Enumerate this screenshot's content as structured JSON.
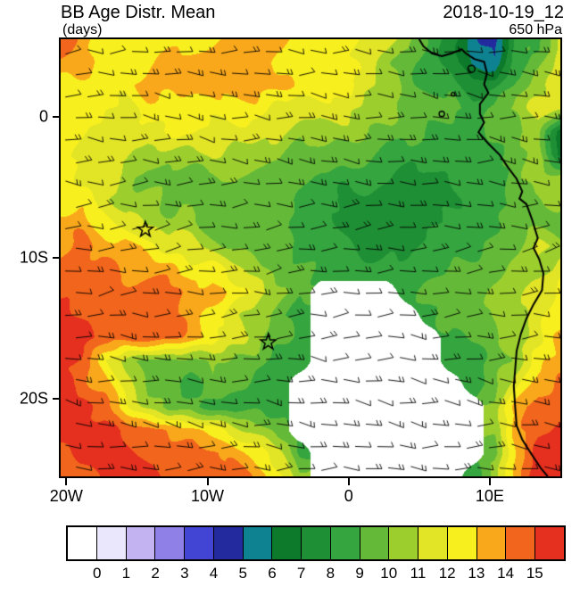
{
  "header": {
    "title": "BB Age Distr. Mean",
    "datetime": "2018-10-19_12",
    "units": "(days)",
    "level": "650 hPa"
  },
  "axes": {
    "x": {
      "ticks": [
        {
          "label": "20W",
          "lon": -20
        },
        {
          "label": "10W",
          "lon": -10
        },
        {
          "label": "0",
          "lon": 0
        },
        {
          "label": "10E",
          "lon": 10
        }
      ]
    },
    "y": {
      "ticks": [
        {
          "label": "0",
          "lat": 0
        },
        {
          "label": "10S",
          "lat": -10
        },
        {
          "label": "20S",
          "lat": -20
        }
      ]
    }
  },
  "colorbar": {
    "labels": [
      "0",
      "1",
      "2",
      "3",
      "4",
      "5",
      "6",
      "7",
      "8",
      "9",
      "10",
      "11",
      "12",
      "13",
      "14",
      "15"
    ]
  },
  "chart_data": {
    "type": "heatmap",
    "title": "BB Age Distr. Mean",
    "subtitle_units": "days",
    "level": "650 hPa",
    "valid_time": "2018-10-19_12",
    "lon_range": [
      -20.4,
      15.0
    ],
    "lat_range": [
      5.5,
      -25.5
    ],
    "level_boundaries": [
      0,
      1,
      2,
      3,
      4,
      5,
      6,
      7,
      8,
      9,
      10,
      11,
      12,
      13,
      14,
      15
    ],
    "palette": [
      "#ffffff",
      "#eae6fc",
      "#c3b3f1",
      "#8f80e8",
      "#4245d4",
      "#232a9e",
      "#0e8290",
      "#0c7a2a",
      "#1f8f35",
      "#35a53f",
      "#64ba38",
      "#9ccf2e",
      "#e2e426",
      "#f8ef1e",
      "#f9a81b",
      "#f2651c",
      "#e52f1f"
    ],
    "palette_note": "index i = age bin (i-1,i) days; index 0 = white / below range; index 16 = more than 15 days",
    "grid_lons": [
      -20.4,
      -18.86,
      -17.32,
      -15.78,
      -14.24,
      -12.7,
      -11.17,
      -9.63,
      -8.09,
      -6.55,
      -5.01,
      -3.47,
      -1.93,
      -0.39,
      1.14,
      2.68,
      4.22,
      5.76,
      7.3,
      8.84,
      10.38,
      11.92,
      13.46,
      15.0
    ],
    "grid_lats": [
      5.5,
      3.87,
      2.24,
      0.61,
      -1.03,
      -2.66,
      -4.29,
      -5.92,
      -7.55,
      -9.18,
      -10.82,
      -12.45,
      -14.08,
      -15.71,
      -17.34,
      -18.97,
      -20.61,
      -22.24,
      -23.87,
      -25.5
    ],
    "age_bins": [
      [
        15,
        14,
        13,
        13,
        13,
        13,
        13,
        13,
        14,
        14,
        14,
        13,
        13,
        13,
        12,
        12,
        11,
        9,
        8,
        6,
        5,
        9,
        9,
        12
      ],
      [
        14,
        14,
        13,
        13,
        13,
        14,
        14,
        14,
        14,
        14,
        13,
        13,
        13,
        13,
        12,
        11,
        10,
        9,
        8,
        6,
        6,
        9,
        10,
        12
      ],
      [
        13,
        13,
        13,
        13,
        14,
        14,
        14,
        14,
        14,
        14,
        14,
        13,
        13,
        13,
        12,
        11,
        10,
        9,
        9,
        8,
        8,
        10,
        11,
        12
      ],
      [
        13,
        13,
        13,
        12,
        13,
        13,
        13,
        13,
        13,
        13,
        12,
        12,
        12,
        12,
        11,
        11,
        10,
        10,
        10,
        9,
        10,
        11,
        12,
        12
      ],
      [
        13,
        13,
        12,
        12,
        12,
        13,
        13,
        12,
        12,
        12,
        12,
        11,
        11,
        11,
        11,
        10,
        10,
        9,
        9,
        9,
        10,
        10,
        11,
        7
      ],
      [
        13,
        12,
        12,
        12,
        11,
        11,
        11,
        12,
        11,
        11,
        11,
        10,
        10,
        10,
        10,
        9,
        9,
        9,
        9,
        9,
        9,
        10,
        11,
        7
      ],
      [
        13,
        12,
        12,
        11,
        10,
        10,
        10,
        10,
        11,
        10,
        10,
        10,
        9,
        9,
        9,
        9,
        8,
        8,
        9,
        9,
        9,
        10,
        11,
        11
      ],
      [
        13,
        13,
        12,
        11,
        11,
        10,
        10,
        10,
        10,
        10,
        10,
        9,
        9,
        8,
        8,
        8,
        8,
        8,
        8,
        9,
        9,
        10,
        10,
        11
      ],
      [
        14,
        14,
        13,
        12,
        11,
        11,
        11,
        10,
        10,
        10,
        10,
        9,
        9,
        8,
        8,
        8,
        8,
        8,
        9,
        9,
        9,
        10,
        10,
        10
      ],
      [
        14,
        15,
        14,
        14,
        13,
        12,
        12,
        11,
        10,
        10,
        10,
        9,
        9,
        9,
        8,
        8,
        8,
        9,
        9,
        9,
        10,
        10,
        12,
        11
      ],
      [
        15,
        15,
        15,
        14,
        14,
        14,
        13,
        13,
        12,
        11,
        10,
        10,
        9,
        9,
        9,
        9,
        9,
        9,
        10,
        10,
        10,
        11,
        11,
        12
      ],
      [
        15,
        15,
        15,
        15,
        15,
        15,
        14,
        14,
        13,
        12,
        11,
        10,
        0,
        0,
        0,
        0,
        9,
        10,
        10,
        10,
        11,
        11,
        12,
        13
      ],
      [
        16,
        15,
        15,
        15,
        15,
        15,
        14,
        13,
        12,
        11,
        10,
        9,
        0,
        0,
        0,
        0,
        0,
        9,
        10,
        10,
        11,
        11,
        12,
        13
      ],
      [
        16,
        16,
        15,
        15,
        15,
        15,
        14,
        13,
        12,
        11,
        10,
        9,
        0,
        0,
        0,
        0,
        0,
        0,
        9,
        10,
        10,
        11,
        12,
        14
      ],
      [
        16,
        15,
        13,
        11,
        10,
        10,
        10,
        11,
        10,
        10,
        9,
        9,
        0,
        0,
        0,
        0,
        0,
        0,
        9,
        9,
        10,
        11,
        13,
        14
      ],
      [
        16,
        15,
        14,
        12,
        10,
        10,
        9,
        10,
        10,
        9,
        9,
        0,
        0,
        0,
        0,
        0,
        0,
        0,
        0,
        9,
        10,
        12,
        14,
        15
      ],
      [
        16,
        16,
        15,
        13,
        11,
        10,
        10,
        9,
        9,
        9,
        9,
        0,
        0,
        0,
        0,
        0,
        0,
        0,
        0,
        0,
        11,
        14,
        15,
        15
      ],
      [
        16,
        16,
        16,
        15,
        15,
        14,
        14,
        13,
        12,
        11,
        10,
        0,
        0,
        0,
        0,
        0,
        0,
        0,
        0,
        0,
        11,
        14,
        15,
        16
      ],
      [
        15,
        16,
        16,
        16,
        15,
        15,
        15,
        15,
        14,
        13,
        12,
        9,
        0,
        0,
        0,
        0,
        0,
        0,
        0,
        0,
        10,
        14,
        16,
        16
      ],
      [
        15,
        15,
        16,
        16,
        16,
        15,
        15,
        15,
        15,
        14,
        13,
        11,
        0,
        0,
        0,
        0,
        0,
        0,
        0,
        9,
        11,
        14,
        16,
        16
      ]
    ],
    "markers": [
      {
        "symbol": "star",
        "lon": -14.4,
        "lat": -8.0
      },
      {
        "symbol": "star",
        "lon": -5.7,
        "lat": -16.0
      }
    ],
    "wind_overlay": {
      "style": "barbs",
      "description": "light easterly / southeasterly wind barbs covering the whole domain"
    },
    "coastline": [
      [
        5.0,
        5.5
      ],
      [
        5.3,
        5.0
      ],
      [
        5.9,
        4.5
      ],
      [
        6.6,
        4.3
      ],
      [
        7.3,
        4.5
      ],
      [
        8.0,
        4.8
      ],
      [
        8.3,
        4.5
      ],
      [
        8.9,
        4.1
      ],
      [
        9.6,
        3.9
      ],
      [
        9.8,
        3.1
      ],
      [
        9.6,
        2.3
      ],
      [
        9.9,
        1.7
      ],
      [
        9.3,
        0.9
      ],
      [
        9.3,
        0.2
      ],
      [
        9.6,
        -0.4
      ],
      [
        9.2,
        -1.1
      ],
      [
        9.9,
        -1.9
      ],
      [
        10.7,
        -2.7
      ],
      [
        11.3,
        -3.6
      ],
      [
        11.9,
        -4.4
      ],
      [
        12.3,
        -5.3
      ],
      [
        12.1,
        -5.8
      ],
      [
        12.6,
        -6.2
      ],
      [
        13.0,
        -7.3
      ],
      [
        13.4,
        -8.6
      ],
      [
        13.1,
        -9.3
      ],
      [
        13.5,
        -10.1
      ],
      [
        13.8,
        -11.1
      ],
      [
        13.7,
        -12.3
      ],
      [
        13.1,
        -13.3
      ],
      [
        12.6,
        -14.3
      ],
      [
        12.2,
        -15.4
      ],
      [
        11.9,
        -16.6
      ],
      [
        11.8,
        -17.9
      ],
      [
        11.7,
        -19.1
      ],
      [
        11.8,
        -20.6
      ],
      [
        11.9,
        -21.9
      ],
      [
        12.3,
        -22.9
      ],
      [
        13.0,
        -24.0
      ],
      [
        13.6,
        -24.9
      ],
      [
        14.1,
        -25.5
      ]
    ],
    "islands": [
      [
        8.7,
        3.4,
        4
      ],
      [
        7.4,
        1.6,
        2
      ],
      [
        6.6,
        0.2,
        3
      ]
    ]
  }
}
